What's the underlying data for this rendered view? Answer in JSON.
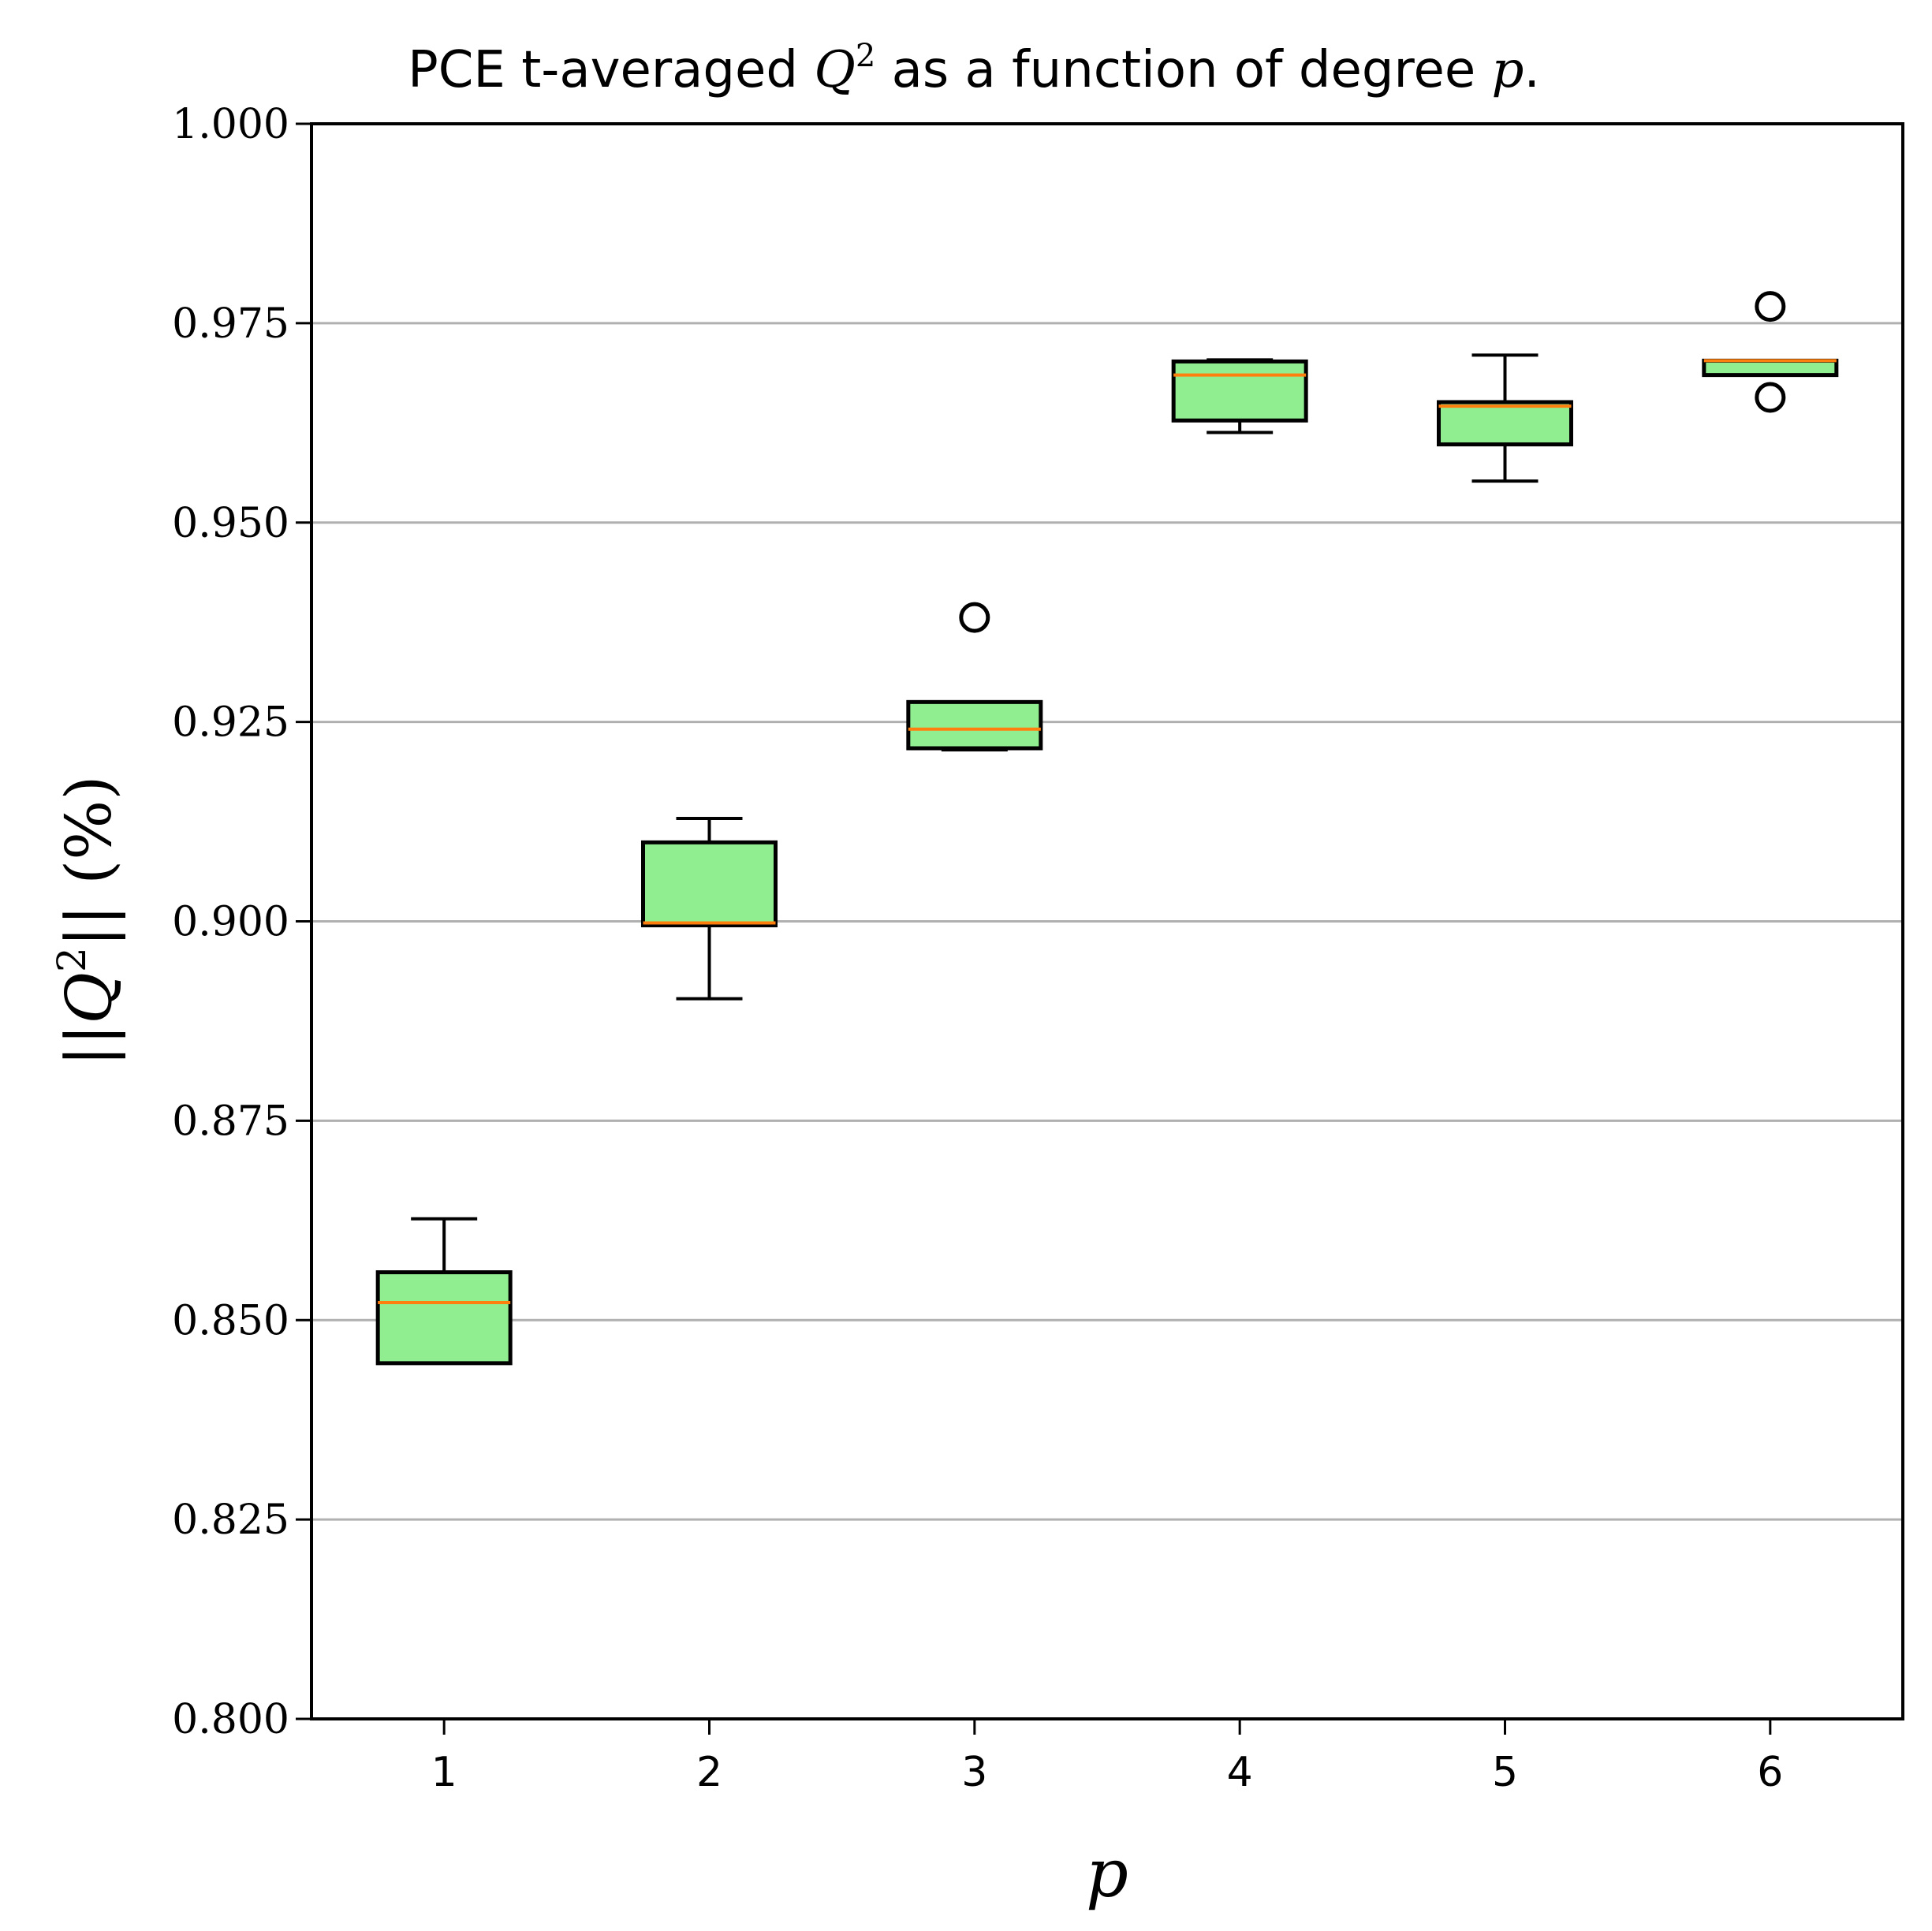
{
  "chart_data": {
    "type": "boxplot",
    "title": {
      "pre": "PCE t-averaged ",
      "var": "Q",
      "sup": "2",
      "mid": " as a function of degree ",
      "var2": "p",
      "post": "."
    },
    "xlabel": "p",
    "ylabel": {
      "pre": "||",
      "var": "Q",
      "sup": "2",
      "post": "|| (%)"
    },
    "ylim": [
      0.8,
      1.0
    ],
    "yticks": [
      "0.800",
      "0.825",
      "0.850",
      "0.875",
      "0.900",
      "0.925",
      "0.950",
      "0.975",
      "1.000"
    ],
    "categories": [
      "1",
      "2",
      "3",
      "4",
      "5",
      "6"
    ],
    "grid": "horizontal",
    "box_fill": "#90ee90",
    "median_color": "#ff7f0e",
    "boxes": [
      {
        "whisker_low": 0.8446,
        "q1": 0.8446,
        "median": 0.8522,
        "q3": 0.856,
        "whisker_high": 0.8627,
        "outliers": []
      },
      {
        "whisker_low": 0.8903,
        "q1": 0.8995,
        "median": 0.8998,
        "q3": 0.9099,
        "whisker_high": 0.9129,
        "outliers": []
      },
      {
        "whisker_low": 0.9215,
        "q1": 0.9217,
        "median": 0.9241,
        "q3": 0.9275,
        "whisker_high": 0.9275,
        "outliers": [
          0.9381
        ]
      },
      {
        "whisker_low": 0.9613,
        "q1": 0.9628,
        "median": 0.9685,
        "q3": 0.9702,
        "whisker_high": 0.9704,
        "outliers": []
      },
      {
        "whisker_low": 0.9552,
        "q1": 0.9598,
        "median": 0.9646,
        "q3": 0.9651,
        "whisker_high": 0.971,
        "outliers": []
      },
      {
        "whisker_low": 0.9685,
        "q1": 0.9685,
        "median": 0.9703,
        "q3": 0.9703,
        "whisker_high": 0.9703,
        "outliers": [
          0.9771,
          0.9657
        ]
      }
    ]
  }
}
